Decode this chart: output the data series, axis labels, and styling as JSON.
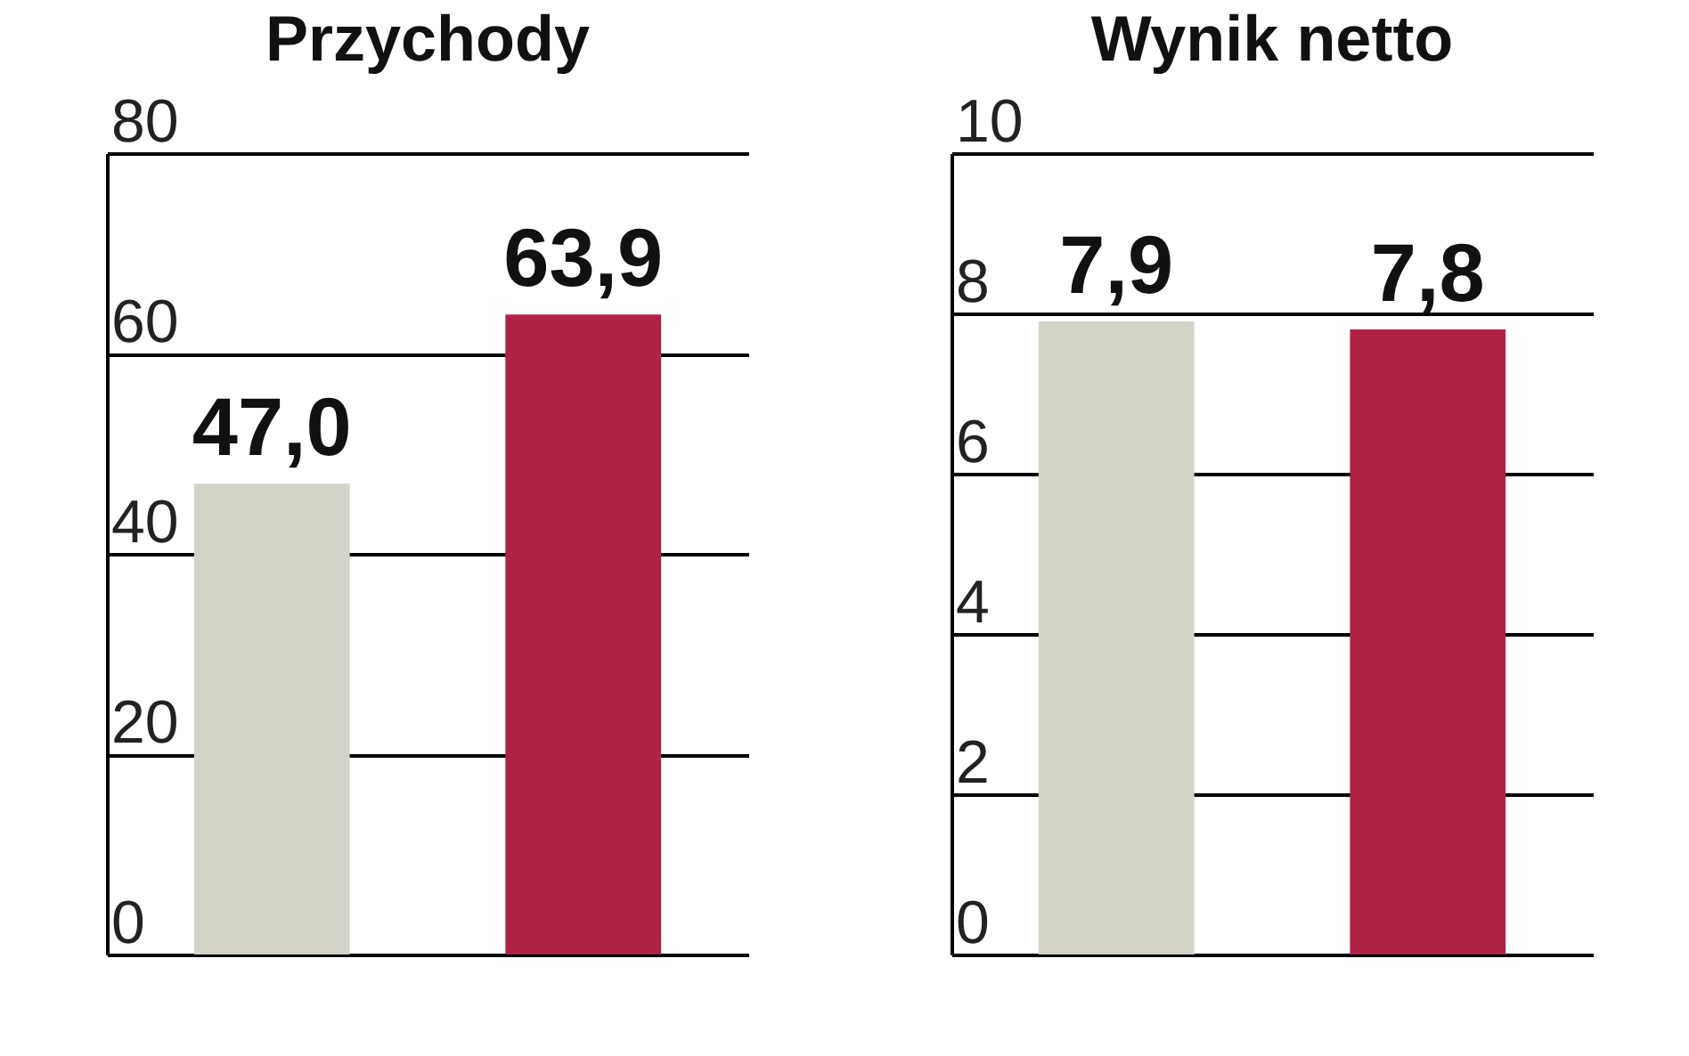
{
  "chart_data": [
    {
      "type": "bar",
      "title": "Przychody",
      "categories": [
        null,
        null
      ],
      "values": [
        47.0,
        63.9
      ],
      "value_labels": [
        "47,0",
        "63,9"
      ],
      "colors": [
        "#d3d3c8",
        "#b02345"
      ],
      "ylim": [
        0,
        80
      ],
      "yticks": [
        0,
        20,
        40,
        60,
        80
      ],
      "grid": "y"
    },
    {
      "type": "bar",
      "title": "Wynik netto",
      "categories": [
        null,
        null
      ],
      "values": [
        7.9,
        7.8
      ],
      "value_labels": [
        "7,9",
        "7,8"
      ],
      "colors": [
        "#d3d3c8",
        "#b02345"
      ],
      "ylim": [
        0,
        10
      ],
      "yticks": [
        0,
        2,
        4,
        6,
        8,
        10
      ],
      "grid": "y"
    }
  ]
}
